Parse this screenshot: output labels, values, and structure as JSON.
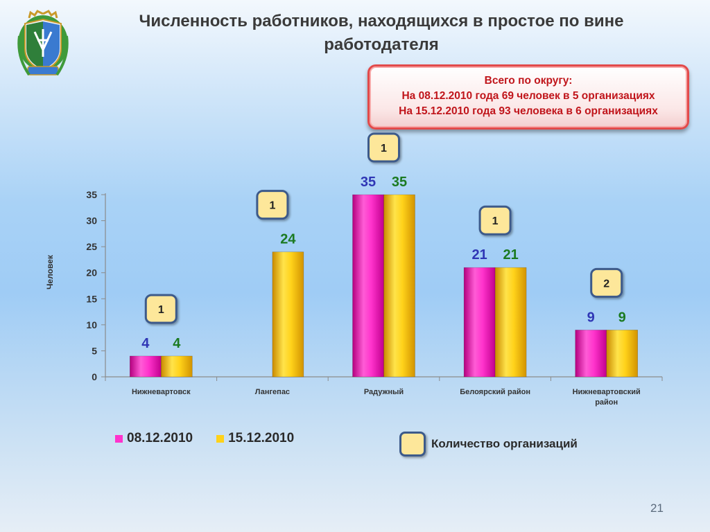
{
  "slide": {
    "title_line1": "Численность работников, находящихся в простое по вине",
    "title_line2": "работодателя",
    "page_number": "21"
  },
  "summary": {
    "line1": "Всего по округу:",
    "line2": "На 08.12.2010 года 69 человек в 5 организациях",
    "line3": "На 15.12.2010 года  93 человека в 6 организациях"
  },
  "legend": {
    "series1": "08.12.2010",
    "series2": "15.12.2010",
    "org_count_label": "Количество  организаций"
  },
  "colors": {
    "series1": "#ff33cc",
    "series2": "#ffd21a",
    "label1": "#2f36b5",
    "label2": "#1b7a21",
    "org_box_fill": "#fde79a",
    "org_box_border": "#3c5a8a"
  },
  "chart_data": {
    "type": "bar",
    "title": "",
    "xlabel": "",
    "ylabel": "Человек",
    "ylim": [
      0,
      35
    ],
    "yticks": [
      0,
      5,
      10,
      15,
      20,
      25,
      30,
      35
    ],
    "categories": [
      "Нижневартовск",
      "Лангепас",
      "Радужный",
      "Белоярский район",
      "Нижневартовский район"
    ],
    "series": [
      {
        "name": "08.12.2010",
        "values": [
          4,
          null,
          35,
          21,
          9
        ]
      },
      {
        "name": "15.12.2010",
        "values": [
          4,
          24,
          35,
          21,
          9
        ]
      }
    ],
    "org_counts": [
      "1",
      "1",
      "1",
      "1",
      "2"
    ],
    "grid": false,
    "legend_position": "bottom"
  }
}
